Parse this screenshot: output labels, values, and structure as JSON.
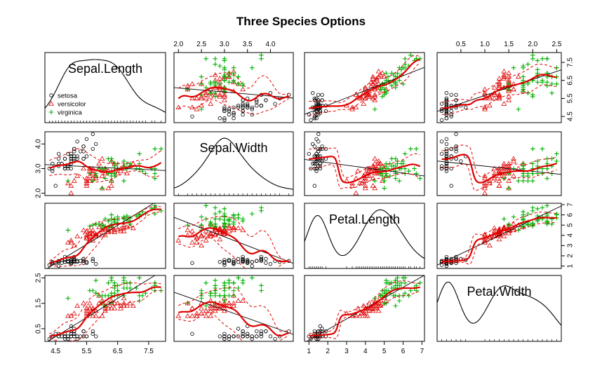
{
  "chart_data": {
    "type": "scatter",
    "title": "Three Species Options",
    "variables": [
      "Sepal.Length",
      "Sepal.Width",
      "Petal.Length",
      "Petal.Width"
    ],
    "ranges": {
      "Sepal.Length": [
        4.3,
        7.9
      ],
      "Sepal.Width": [
        2.0,
        4.4
      ],
      "Petal.Length": [
        1.0,
        6.9
      ],
      "Petal.Width": [
        0.1,
        2.5
      ]
    },
    "ticks": {
      "Sepal.Length": [
        "4.5",
        "5.5",
        "6.5",
        "7.5"
      ],
      "Sepal.Width": [
        "2.0",
        "2.5",
        "3.0",
        "3.5",
        "4.0"
      ],
      "Petal.Length": [
        "1",
        "2",
        "3",
        "4",
        "5",
        "6",
        "7"
      ],
      "Petal.Width": [
        "0.5",
        "1.0",
        "1.5",
        "2.0",
        "2.5"
      ]
    },
    "left_axis_ticks": {
      "Sepal.Width": [
        "2.0",
        "3.0",
        "4.0"
      ],
      "Petal.Width": [
        "0.5",
        "1.5",
        "2.5"
      ]
    },
    "right_axis_ticks": {
      "Sepal.Length": [
        "4.5",
        "5.5",
        "6.5",
        "7.5"
      ],
      "Petal.Length": [
        "1",
        "2",
        "3",
        "4",
        "5",
        "6",
        "7"
      ]
    },
    "legend": {
      "position": "bottom-left of first diagonal panel",
      "entries": [
        {
          "name": "setosa",
          "symbol": "circle",
          "color": "#000000"
        },
        {
          "name": "versicolor",
          "symbol": "triangle",
          "color": "#DF0000"
        },
        {
          "name": "virginica",
          "symbol": "plus",
          "color": "#00B000"
        }
      ]
    },
    "groups": [
      {
        "name": "setosa",
        "color": "#000000",
        "symbol": "circle",
        "points": [
          [
            5.1,
            3.5,
            1.4,
            0.2
          ],
          [
            4.9,
            3.0,
            1.4,
            0.2
          ],
          [
            4.7,
            3.2,
            1.3,
            0.2
          ],
          [
            4.6,
            3.1,
            1.5,
            0.2
          ],
          [
            5.0,
            3.6,
            1.4,
            0.2
          ],
          [
            5.4,
            3.9,
            1.7,
            0.4
          ],
          [
            4.6,
            3.4,
            1.4,
            0.3
          ],
          [
            5.0,
            3.4,
            1.5,
            0.2
          ],
          [
            4.4,
            2.9,
            1.4,
            0.2
          ],
          [
            4.9,
            3.1,
            1.5,
            0.1
          ],
          [
            5.4,
            3.7,
            1.5,
            0.2
          ],
          [
            4.8,
            3.4,
            1.6,
            0.2
          ],
          [
            4.8,
            3.0,
            1.4,
            0.1
          ],
          [
            4.3,
            3.0,
            1.1,
            0.1
          ],
          [
            5.8,
            4.0,
            1.2,
            0.2
          ],
          [
            5.7,
            4.4,
            1.5,
            0.4
          ],
          [
            5.4,
            3.9,
            1.3,
            0.4
          ],
          [
            5.1,
            3.5,
            1.4,
            0.3
          ],
          [
            5.7,
            3.8,
            1.7,
            0.3
          ],
          [
            5.1,
            3.8,
            1.5,
            0.3
          ],
          [
            5.4,
            3.4,
            1.7,
            0.2
          ],
          [
            5.1,
            3.7,
            1.5,
            0.4
          ],
          [
            4.6,
            3.6,
            1.0,
            0.2
          ],
          [
            5.1,
            3.3,
            1.7,
            0.5
          ],
          [
            4.8,
            3.4,
            1.9,
            0.2
          ],
          [
            5.0,
            3.0,
            1.6,
            0.2
          ],
          [
            5.0,
            3.4,
            1.6,
            0.4
          ],
          [
            5.2,
            3.5,
            1.5,
            0.2
          ],
          [
            5.2,
            3.4,
            1.4,
            0.2
          ],
          [
            4.7,
            3.2,
            1.6,
            0.2
          ],
          [
            4.8,
            3.1,
            1.6,
            0.2
          ],
          [
            5.4,
            3.4,
            1.5,
            0.4
          ],
          [
            5.2,
            4.1,
            1.5,
            0.1
          ],
          [
            5.5,
            4.2,
            1.4,
            0.2
          ],
          [
            4.9,
            3.1,
            1.5,
            0.2
          ],
          [
            5.0,
            3.2,
            1.2,
            0.2
          ],
          [
            5.5,
            3.5,
            1.3,
            0.2
          ],
          [
            4.9,
            3.6,
            1.4,
            0.1
          ],
          [
            4.4,
            3.0,
            1.3,
            0.2
          ],
          [
            5.1,
            3.4,
            1.5,
            0.2
          ],
          [
            5.0,
            3.5,
            1.3,
            0.3
          ],
          [
            4.5,
            2.3,
            1.3,
            0.3
          ],
          [
            4.4,
            3.2,
            1.3,
            0.2
          ],
          [
            5.0,
            3.5,
            1.6,
            0.6
          ],
          [
            5.1,
            3.8,
            1.9,
            0.4
          ],
          [
            4.8,
            3.0,
            1.4,
            0.3
          ],
          [
            5.1,
            3.8,
            1.6,
            0.2
          ],
          [
            4.6,
            3.2,
            1.4,
            0.2
          ],
          [
            5.3,
            3.7,
            1.5,
            0.2
          ],
          [
            5.0,
            3.3,
            1.4,
            0.2
          ]
        ]
      },
      {
        "name": "versicolor",
        "color": "#DF0000",
        "symbol": "triangle",
        "points": [
          [
            7.0,
            3.2,
            4.7,
            1.4
          ],
          [
            6.4,
            3.2,
            4.5,
            1.5
          ],
          [
            6.9,
            3.1,
            4.9,
            1.5
          ],
          [
            5.5,
            2.3,
            4.0,
            1.3
          ],
          [
            6.5,
            2.8,
            4.6,
            1.5
          ],
          [
            5.7,
            2.8,
            4.5,
            1.3
          ],
          [
            6.3,
            3.3,
            4.7,
            1.6
          ],
          [
            4.9,
            2.4,
            3.3,
            1.0
          ],
          [
            6.6,
            2.9,
            4.6,
            1.3
          ],
          [
            5.2,
            2.7,
            3.9,
            1.4
          ],
          [
            5.0,
            2.0,
            3.5,
            1.0
          ],
          [
            5.9,
            3.0,
            4.2,
            1.5
          ],
          [
            6.0,
            2.2,
            4.0,
            1.0
          ],
          [
            6.1,
            2.9,
            4.7,
            1.4
          ],
          [
            5.6,
            2.9,
            3.6,
            1.3
          ],
          [
            6.7,
            3.1,
            4.4,
            1.4
          ],
          [
            5.6,
            3.0,
            4.5,
            1.5
          ],
          [
            5.8,
            2.7,
            4.1,
            1.0
          ],
          [
            6.2,
            2.2,
            4.5,
            1.5
          ],
          [
            5.6,
            2.5,
            3.9,
            1.1
          ],
          [
            5.9,
            3.2,
            4.8,
            1.8
          ],
          [
            6.1,
            2.8,
            4.0,
            1.3
          ],
          [
            6.3,
            2.5,
            4.9,
            1.5
          ],
          [
            6.1,
            2.8,
            4.7,
            1.2
          ],
          [
            6.4,
            2.9,
            4.3,
            1.3
          ],
          [
            6.6,
            3.0,
            4.4,
            1.4
          ],
          [
            6.8,
            2.8,
            4.8,
            1.4
          ],
          [
            6.7,
            3.0,
            5.0,
            1.7
          ],
          [
            6.0,
            2.9,
            4.5,
            1.5
          ],
          [
            5.7,
            2.6,
            3.5,
            1.0
          ],
          [
            5.5,
            2.4,
            3.8,
            1.1
          ],
          [
            5.5,
            2.4,
            3.7,
            1.0
          ],
          [
            5.8,
            2.7,
            3.9,
            1.2
          ],
          [
            6.0,
            2.7,
            5.1,
            1.6
          ],
          [
            5.4,
            3.0,
            4.5,
            1.5
          ],
          [
            6.0,
            3.4,
            4.5,
            1.6
          ],
          [
            6.7,
            3.1,
            4.7,
            1.5
          ],
          [
            6.3,
            2.3,
            4.4,
            1.3
          ],
          [
            5.6,
            3.0,
            4.1,
            1.3
          ],
          [
            5.5,
            2.5,
            4.0,
            1.3
          ],
          [
            5.5,
            2.6,
            4.4,
            1.2
          ],
          [
            6.1,
            3.0,
            4.6,
            1.4
          ],
          [
            5.8,
            2.6,
            4.0,
            1.2
          ],
          [
            5.0,
            2.3,
            3.3,
            1.0
          ],
          [
            5.6,
            2.7,
            4.2,
            1.3
          ],
          [
            5.7,
            3.0,
            4.2,
            1.2
          ],
          [
            5.7,
            2.9,
            4.2,
            1.3
          ],
          [
            6.2,
            2.9,
            4.3,
            1.3
          ],
          [
            5.1,
            2.5,
            3.0,
            1.1
          ],
          [
            5.7,
            2.8,
            4.1,
            1.3
          ]
        ]
      },
      {
        "name": "virginica",
        "color": "#00B000",
        "symbol": "plus",
        "points": [
          [
            6.3,
            3.3,
            6.0,
            2.5
          ],
          [
            5.8,
            2.7,
            5.1,
            1.9
          ],
          [
            7.1,
            3.0,
            5.9,
            2.1
          ],
          [
            6.3,
            2.9,
            5.6,
            1.8
          ],
          [
            6.5,
            3.0,
            5.8,
            2.2
          ],
          [
            7.6,
            3.0,
            6.6,
            2.1
          ],
          [
            4.9,
            2.5,
            4.5,
            1.7
          ],
          [
            7.3,
            2.9,
            6.3,
            1.8
          ],
          [
            6.7,
            2.5,
            5.8,
            1.8
          ],
          [
            7.2,
            3.6,
            6.1,
            2.5
          ],
          [
            6.5,
            3.2,
            5.1,
            2.0
          ],
          [
            6.4,
            2.7,
            5.3,
            1.9
          ],
          [
            6.8,
            3.0,
            5.5,
            2.1
          ],
          [
            5.7,
            2.5,
            5.0,
            2.0
          ],
          [
            5.8,
            2.8,
            5.1,
            2.4
          ],
          [
            6.4,
            3.2,
            5.3,
            2.3
          ],
          [
            6.5,
            3.0,
            5.5,
            1.8
          ],
          [
            7.7,
            3.8,
            6.7,
            2.2
          ],
          [
            7.7,
            2.6,
            6.9,
            2.3
          ],
          [
            6.0,
            2.2,
            5.0,
            1.5
          ],
          [
            6.9,
            3.2,
            5.7,
            2.3
          ],
          [
            5.6,
            2.8,
            4.9,
            2.0
          ],
          [
            7.7,
            2.8,
            6.7,
            2.0
          ],
          [
            6.3,
            2.7,
            4.9,
            1.8
          ],
          [
            6.7,
            3.3,
            5.7,
            2.1
          ],
          [
            7.2,
            3.2,
            6.0,
            1.8
          ],
          [
            6.2,
            2.8,
            4.8,
            1.8
          ],
          [
            6.1,
            3.0,
            4.9,
            1.8
          ],
          [
            6.4,
            2.8,
            5.6,
            2.1
          ],
          [
            7.2,
            3.0,
            5.8,
            1.6
          ],
          [
            7.4,
            2.8,
            6.1,
            1.9
          ],
          [
            7.9,
            3.8,
            6.4,
            2.0
          ],
          [
            6.4,
            2.8,
            5.6,
            2.2
          ],
          [
            6.3,
            2.8,
            5.1,
            1.5
          ],
          [
            6.1,
            2.6,
            5.6,
            1.4
          ],
          [
            7.7,
            3.0,
            6.1,
            2.3
          ],
          [
            6.3,
            3.4,
            5.6,
            2.4
          ],
          [
            6.4,
            3.1,
            5.5,
            1.8
          ],
          [
            6.0,
            3.0,
            4.8,
            1.8
          ],
          [
            6.9,
            3.1,
            5.4,
            2.1
          ],
          [
            6.7,
            3.1,
            5.6,
            2.4
          ],
          [
            6.9,
            3.1,
            5.1,
            2.3
          ],
          [
            5.8,
            2.7,
            5.1,
            1.9
          ],
          [
            6.8,
            3.2,
            5.9,
            2.3
          ],
          [
            6.7,
            3.3,
            5.7,
            2.5
          ],
          [
            6.7,
            3.0,
            5.2,
            2.3
          ],
          [
            6.3,
            2.5,
            5.0,
            1.9
          ],
          [
            6.5,
            3.0,
            5.2,
            2.0
          ],
          [
            6.2,
            3.4,
            5.4,
            2.3
          ],
          [
            5.9,
            3.0,
            5.1,
            1.8
          ]
        ]
      }
    ]
  }
}
